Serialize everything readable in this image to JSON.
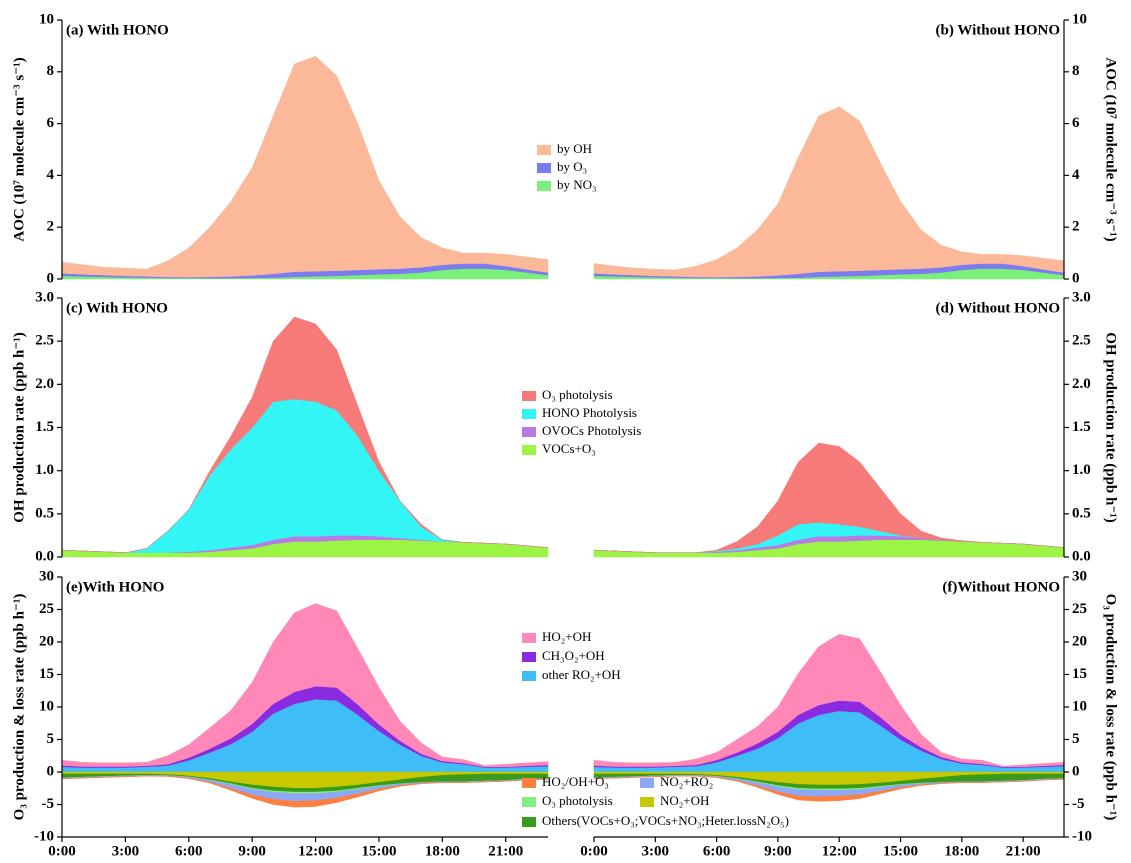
{
  "chart_data": [
    {
      "type": "stacked_area",
      "ylabel": "AOC (10⁷ molecule cm⁻³ s⁻¹)",
      "ylim": [
        0,
        10
      ],
      "yticks": [
        0,
        2,
        4,
        6,
        8,
        10
      ],
      "series": [
        {
          "name": "by OH",
          "color": "#fbb99a"
        },
        {
          "name": "by O₃",
          "color": "#7d7bf0"
        },
        {
          "name": "by NO₃",
          "color": "#7af07a"
        }
      ],
      "panels": [
        {
          "title": "(a) With HONO",
          "values": [
            [
              0.43,
              0.37,
              0.3,
              0.3,
              0.28,
              0.62,
              1.13,
              1.92,
              2.9,
              4.16,
              6.1,
              8.02,
              8.3,
              7.53,
              5.65,
              3.42,
              2.0,
              1.15,
              0.65,
              0.4,
              0.4,
              0.45,
              0.48,
              0.5
            ],
            [
              0.1,
              0.08,
              0.07,
              0.06,
              0.05,
              0.04,
              0.04,
              0.05,
              0.07,
              0.1,
              0.15,
              0.2,
              0.2,
              0.2,
              0.2,
              0.2,
              0.2,
              0.2,
              0.2,
              0.2,
              0.2,
              0.15,
              0.12,
              0.1
            ],
            [
              0.12,
              0.1,
              0.08,
              0.06,
              0.05,
              0.04,
              0.03,
              0.03,
              0.03,
              0.04,
              0.05,
              0.08,
              0.1,
              0.12,
              0.15,
              0.18,
              0.2,
              0.25,
              0.35,
              0.4,
              0.4,
              0.35,
              0.25,
              0.15
            ]
          ]
        },
        {
          "title": "(b) Without HONO",
          "values": [
            [
              0.38,
              0.32,
              0.27,
              0.26,
              0.25,
              0.42,
              0.68,
              1.12,
              1.8,
              2.76,
              4.5,
              6.02,
              6.35,
              5.78,
              4.15,
              2.62,
              1.5,
              0.85,
              0.5,
              0.35,
              0.35,
              0.4,
              0.43,
              0.45
            ],
            [
              0.1,
              0.08,
              0.07,
              0.06,
              0.05,
              0.04,
              0.04,
              0.05,
              0.07,
              0.1,
              0.15,
              0.2,
              0.2,
              0.2,
              0.2,
              0.2,
              0.2,
              0.2,
              0.2,
              0.2,
              0.2,
              0.15,
              0.12,
              0.1
            ],
            [
              0.12,
              0.1,
              0.08,
              0.06,
              0.05,
              0.04,
              0.03,
              0.03,
              0.03,
              0.04,
              0.05,
              0.08,
              0.1,
              0.12,
              0.15,
              0.18,
              0.2,
              0.25,
              0.35,
              0.4,
              0.4,
              0.35,
              0.25,
              0.15
            ]
          ]
        }
      ]
    },
    {
      "type": "stacked_area",
      "ylabel": "OH production rate (ppb h⁻¹)",
      "ylim": [
        0,
        3
      ],
      "yticks": [
        {
          "value": 0,
          "label": "0.0"
        },
        0.5,
        {
          "value": 1,
          "label": "1.0"
        },
        1.5,
        {
          "value": 2,
          "label": "2.0"
        },
        2.5,
        {
          "value": 3,
          "label": "3.0"
        }
      ],
      "series": [
        {
          "name": "O₃ photolysis",
          "color": "#f57a78"
        },
        {
          "name": "HONO Photolysis",
          "color": "#33f5f5"
        },
        {
          "name": "OVOCs Photolysis",
          "color": "#b77be6"
        },
        {
          "name": "VOCs+O₃",
          "color": "#9cf542"
        }
      ],
      "panels": [
        {
          "title": "(c) With HONO",
          "values": [
            [
              0,
              0,
              0,
              0,
              0,
              0,
              0,
              0.05,
              0.15,
              0.35,
              0.7,
              0.95,
              0.9,
              0.7,
              0.35,
              0.1,
              0,
              0.03,
              0,
              0,
              0,
              0,
              0,
              0
            ],
            [
              0,
              0,
              0,
              0,
              0.05,
              0.25,
              0.49,
              0.87,
              1.14,
              1.36,
              1.6,
              1.59,
              1.56,
              1.45,
              1.15,
              0.76,
              0.43,
              0.15,
              0.02,
              0,
              0,
              0,
              0,
              0
            ],
            [
              0,
              0,
              0,
              0,
              0,
              0,
              0.01,
              0.02,
              0.03,
              0.04,
              0.05,
              0.06,
              0.06,
              0.06,
              0.05,
              0.04,
              0.02,
              0.01,
              0,
              0,
              0,
              0,
              0,
              0
            ],
            [
              0.08,
              0.07,
              0.06,
              0.05,
              0.05,
              0.05,
              0.05,
              0.06,
              0.08,
              0.1,
              0.15,
              0.18,
              0.18,
              0.19,
              0.2,
              0.2,
              0.2,
              0.19,
              0.18,
              0.17,
              0.16,
              0.15,
              0.13,
              0.11
            ]
          ]
        },
        {
          "title": "(d) Without HONO",
          "values": [
            [
              0,
              0,
              0,
              0,
              0,
              0,
              0.01,
              0.08,
              0.2,
              0.4,
              0.72,
              0.92,
              0.9,
              0.75,
              0.5,
              0.25,
              0.08,
              0.02,
              0.01,
              0,
              0,
              0,
              0,
              0
            ],
            [
              0,
              0,
              0,
              0,
              0,
              0,
              0.01,
              0.02,
              0.04,
              0.11,
              0.18,
              0.16,
              0.14,
              0.1,
              0.05,
              0.01,
              0,
              0,
              0,
              0,
              0,
              0,
              0,
              0
            ],
            [
              0,
              0,
              0,
              0,
              0,
              0,
              0.01,
              0.02,
              0.03,
              0.04,
              0.05,
              0.06,
              0.06,
              0.06,
              0.05,
              0.04,
              0.02,
              0.01,
              0,
              0,
              0,
              0,
              0,
              0
            ],
            [
              0.08,
              0.07,
              0.06,
              0.05,
              0.05,
              0.05,
              0.05,
              0.06,
              0.08,
              0.1,
              0.15,
              0.18,
              0.18,
              0.19,
              0.2,
              0.2,
              0.2,
              0.19,
              0.18,
              0.17,
              0.16,
              0.15,
              0.13,
              0.11
            ]
          ]
        }
      ]
    },
    {
      "type": "stacked_area",
      "ylabel": "O₃ production & loss rate (ppb h⁻¹)",
      "ylim": [
        -10,
        30
      ],
      "yticks": [
        -10,
        -5,
        0,
        5,
        10,
        15,
        20,
        25,
        30
      ],
      "categories": [
        "0:00",
        null,
        null,
        "3:00",
        null,
        null,
        "6:00",
        null,
        null,
        "9:00",
        null,
        null,
        "12:00",
        null,
        null,
        "15:00",
        null,
        null,
        "18:00",
        null,
        null,
        "21:00",
        null,
        null
      ],
      "series": [
        {
          "name": "HO₂+OH",
          "color": "#ff88b8"
        },
        {
          "name": "CH₃O₂+OH",
          "color": "#8a2be2"
        },
        {
          "name": "other RO₂+OH",
          "color": "#3fbdf7"
        },
        {
          "name": "HO₂/OH+O₃",
          "color": "#ff7f3f"
        },
        {
          "name": "NO₂+RO₂",
          "color": "#8fa8f5"
        },
        {
          "name": "O₃ photolysis",
          "color": "#80f080"
        },
        {
          "name": "NO₂+OH",
          "color": "#c8c800"
        },
        {
          "name": "Others(VOCs+O₃;VOCs+NO₃;Heter.lossN₂O₅)",
          "color": "#3a9a1a"
        }
      ],
      "panels": [
        {
          "title": "(e)With HONO",
          "values": [
            [
              0.8,
              0.65,
              0.55,
              0.55,
              0.55,
              1.3,
              2.0,
              3.2,
              4.3,
              6.4,
              9.5,
              12.2,
              12.7,
              11.8,
              8.6,
              5.7,
              3.0,
              1.7,
              0.6,
              0.55,
              0.2,
              0.4,
              0.45,
              0.5
            ],
            [
              0.2,
              0.15,
              0.15,
              0.15,
              0.15,
              0.2,
              0.4,
              0.6,
              0.9,
              1.2,
              1.5,
              1.8,
              2.0,
              2.0,
              1.6,
              1.0,
              0.6,
              0.3,
              0.2,
              0.15,
              0.1,
              0.1,
              0.15,
              0.2
            ],
            [
              0.8,
              0.7,
              0.7,
              0.7,
              0.8,
              1.0,
              1.8,
              3.0,
              4.3,
              6.2,
              9.0,
              10.5,
              11.2,
              11.0,
              8.8,
              6.3,
              4.2,
              2.5,
              1.5,
              1.2,
              0.7,
              0.7,
              0.8,
              0.9
            ],
            [
              -0.05,
              -0.05,
              -0.05,
              -0.05,
              -0.05,
              -0.05,
              -0.1,
              -0.15,
              -0.3,
              -0.5,
              -0.8,
              -0.9,
              -0.9,
              -0.7,
              -0.5,
              -0.3,
              -0.15,
              -0.1,
              -0.05,
              -0.05,
              -0.05,
              -0.05,
              -0.05,
              -0.05
            ],
            [
              -0.1,
              -0.1,
              -0.1,
              -0.1,
              -0.1,
              -0.1,
              -0.15,
              -0.3,
              -0.6,
              -0.9,
              -1.1,
              -1.2,
              -1.1,
              -0.9,
              -0.7,
              -0.4,
              -0.2,
              -0.1,
              -0.1,
              -0.1,
              -0.1,
              -0.1,
              -0.1,
              -0.1
            ],
            [
              0,
              0,
              0,
              0,
              0,
              0,
              -0.02,
              -0.05,
              -0.1,
              -0.15,
              -0.2,
              -0.2,
              -0.2,
              -0.2,
              -0.15,
              -0.1,
              -0.05,
              -0.02,
              0,
              0,
              0,
              0,
              0,
              0
            ],
            [
              -0.3,
              -0.3,
              -0.3,
              -0.3,
              -0.3,
              -0.4,
              -0.6,
              -1.0,
              -1.5,
              -2.0,
              -2.3,
              -2.5,
              -2.5,
              -2.3,
              -2.0,
              -1.6,
              -1.2,
              -0.8,
              -0.5,
              -0.4,
              -0.3,
              -0.3,
              -0.3,
              -0.3
            ],
            [
              -0.6,
              -0.5,
              -0.4,
              -0.3,
              -0.2,
              -0.15,
              -0.15,
              -0.2,
              -0.3,
              -0.5,
              -0.6,
              -0.6,
              -0.6,
              -0.6,
              -0.5,
              -0.5,
              -0.6,
              -0.8,
              -1.0,
              -1.1,
              -1.1,
              -1.0,
              -0.8,
              -0.7
            ]
          ]
        },
        {
          "title": "(f)Without HONO",
          "values": [
            [
              0.8,
              0.65,
              0.55,
              0.55,
              0.55,
              0.9,
              1.15,
              2.0,
              2.6,
              3.8,
              6.4,
              9.0,
              10.2,
              9.7,
              7.0,
              4.5,
              2.0,
              0.7,
              0.5,
              0.55,
              0.1,
              0.3,
              0.35,
              0.4
            ],
            [
              0.2,
              0.15,
              0.15,
              0.15,
              0.15,
              0.2,
              0.35,
              0.5,
              0.8,
              1.0,
              1.3,
              1.5,
              1.6,
              1.6,
              1.3,
              0.8,
              0.5,
              0.3,
              0.2,
              0.15,
              0.1,
              0.1,
              0.15,
              0.2
            ],
            [
              0.8,
              0.7,
              0.7,
              0.7,
              0.8,
              0.9,
              1.5,
              2.5,
              3.6,
              5.2,
              7.5,
              8.8,
              9.4,
              9.2,
              7.2,
              5.0,
              3.3,
              2.0,
              1.3,
              1.1,
              0.7,
              0.7,
              0.8,
              0.9
            ],
            [
              -0.05,
              -0.05,
              -0.05,
              -0.05,
              -0.05,
              -0.05,
              -0.08,
              -0.12,
              -0.25,
              -0.4,
              -0.6,
              -0.7,
              -0.7,
              -0.6,
              -0.4,
              -0.25,
              -0.12,
              -0.08,
              -0.05,
              -0.05,
              -0.05,
              -0.05,
              -0.05,
              -0.05
            ],
            [
              -0.1,
              -0.1,
              -0.1,
              -0.1,
              -0.1,
              -0.1,
              -0.12,
              -0.25,
              -0.5,
              -0.8,
              -1.0,
              -1.0,
              -0.9,
              -0.8,
              -0.6,
              -0.35,
              -0.2,
              -0.1,
              -0.1,
              -0.1,
              -0.1,
              -0.1,
              -0.1,
              -0.1
            ],
            [
              0,
              0,
              0,
              0,
              0,
              0,
              -0.02,
              -0.05,
              -0.1,
              -0.15,
              -0.2,
              -0.2,
              -0.2,
              -0.2,
              -0.15,
              -0.1,
              -0.05,
              -0.02,
              0,
              0,
              0,
              0,
              0,
              0
            ],
            [
              -0.3,
              -0.3,
              -0.3,
              -0.3,
              -0.3,
              -0.35,
              -0.5,
              -0.8,
              -1.2,
              -1.6,
              -1.9,
              -2.0,
              -2.0,
              -1.9,
              -1.7,
              -1.4,
              -1.1,
              -0.8,
              -0.5,
              -0.4,
              -0.3,
              -0.3,
              -0.3,
              -0.3
            ],
            [
              -0.6,
              -0.5,
              -0.4,
              -0.3,
              -0.2,
              -0.15,
              -0.15,
              -0.2,
              -0.3,
              -0.5,
              -0.6,
              -0.6,
              -0.6,
              -0.6,
              -0.5,
              -0.5,
              -0.6,
              -0.8,
              -1.0,
              -1.1,
              -1.1,
              -1.0,
              -0.8,
              -0.7
            ]
          ]
        }
      ]
    }
  ]
}
